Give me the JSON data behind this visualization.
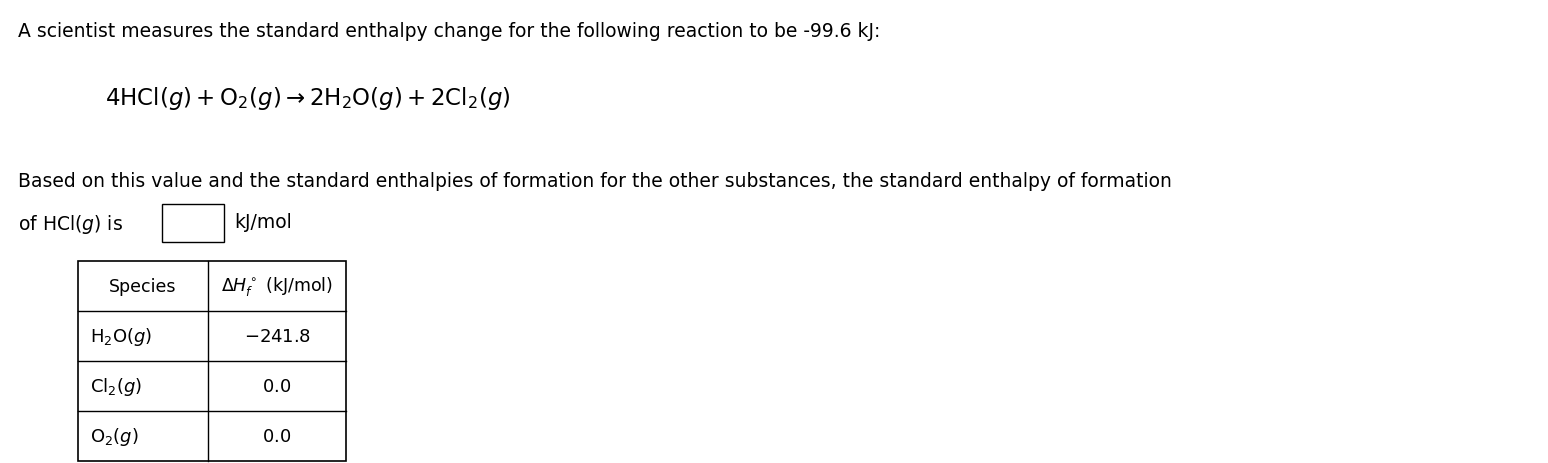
{
  "background_color": "#ffffff",
  "text_color": "#000000",
  "line1": "A scientist measures the standard enthalpy change for the following reaction to be -99.6 kJ:",
  "line3_part1": "Based on this value and the standard enthalpies of formation for the other substances, the standard enthalpy of formation",
  "line3_part2": "of HCl is",
  "line3_part3": "kJ/mol",
  "table_header_col1": "Species",
  "table_data": [
    [
      "-241.8"
    ],
    [
      "0.0"
    ],
    [
      "0.0"
    ]
  ],
  "figsize": [
    15.48,
    4.64
  ],
  "dpi": 100
}
